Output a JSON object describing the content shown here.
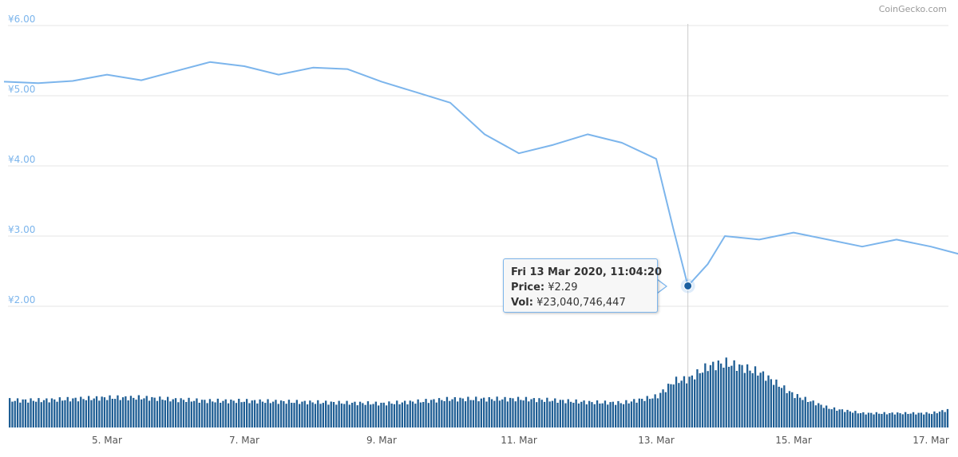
{
  "credit": "CoinGecko.com",
  "colors": {
    "price_line": "#7cb5ec",
    "volume_bar": "#1f5e94",
    "crosshair": "#cccccc",
    "marker": "#1b5fa0"
  },
  "chart_data": [
    {
      "type": "line",
      "series": [
        {
          "x": [
            "2020-03-03 12:00",
            "2020-03-04 00:00",
            "2020-03-04 12:00",
            "2020-03-05 00:00",
            "2020-03-05 12:00",
            "2020-03-06 00:00",
            "2020-03-06 12:00",
            "2020-03-07 00:00",
            "2020-03-07 12:00",
            "2020-03-08 00:00",
            "2020-03-08 12:00",
            "2020-03-09 00:00",
            "2020-03-09 12:00",
            "2020-03-10 00:00",
            "2020-03-10 12:00",
            "2020-03-11 00:00",
            "2020-03-11 12:00",
            "2020-03-12 00:00",
            "2020-03-12 12:00",
            "2020-03-13 00:00",
            "2020-03-13 06:00",
            "2020-03-13 11:04",
            "2020-03-13 18:00",
            "2020-03-14 00:00",
            "2020-03-14 12:00",
            "2020-03-15 00:00",
            "2020-03-15 12:00",
            "2020-03-16 00:00",
            "2020-03-16 12:00",
            "2020-03-17 00:00",
            "2020-03-17 12:00"
          ],
          "values": [
            5.2,
            5.18,
            5.21,
            5.3,
            5.22,
            5.35,
            5.48,
            5.42,
            5.3,
            5.4,
            5.38,
            5.2,
            5.05,
            4.9,
            4.45,
            4.18,
            4.3,
            4.45,
            4.33,
            4.1,
            3.1,
            2.29,
            2.6,
            3.0,
            2.95,
            3.05,
            2.95,
            2.85,
            2.95,
            2.85,
            2.72
          ]
        }
      ],
      "yticks": [
        "¥2.00",
        "¥3.00",
        "¥4.00",
        "¥5.00",
        "¥6.00"
      ],
      "ylim": [
        2.0,
        6.0
      ],
      "grid": true,
      "tooltip": {
        "date": "Fri 13 Mar 2020, 11:04:20",
        "price_label": "Price:",
        "price": "¥2.29",
        "vol_label": "Vol:",
        "volume": "¥23,040,746,447"
      }
    },
    {
      "type": "bar",
      "x": [
        "2020-03-03 12:00",
        "2020-03-04 00:00",
        "2020-03-04 12:00",
        "2020-03-05 00:00",
        "2020-03-05 12:00",
        "2020-03-06 00:00",
        "2020-03-06 12:00",
        "2020-03-07 00:00",
        "2020-03-07 12:00",
        "2020-03-08 00:00",
        "2020-03-08 12:00",
        "2020-03-09 00:00",
        "2020-03-09 12:00",
        "2020-03-10 00:00",
        "2020-03-10 12:00",
        "2020-03-11 00:00",
        "2020-03-11 12:00",
        "2020-03-12 00:00",
        "2020-03-12 12:00",
        "2020-03-13 00:00",
        "2020-03-13 06:00",
        "2020-03-13 11:04",
        "2020-03-13 18:00",
        "2020-03-14 00:00",
        "2020-03-14 06:00",
        "2020-03-14 12:00",
        "2020-03-15 00:00",
        "2020-03-15 12:00",
        "2020-03-16 00:00",
        "2020-03-16 12:00",
        "2020-03-17 00:00",
        "2020-03-17 12:00"
      ],
      "values": [
        0.42,
        0.42,
        0.44,
        0.46,
        0.46,
        0.43,
        0.41,
        0.41,
        0.4,
        0.39,
        0.38,
        0.37,
        0.4,
        0.44,
        0.44,
        0.44,
        0.42,
        0.39,
        0.38,
        0.48,
        0.72,
        0.75,
        0.95,
        1.0,
        0.93,
        0.85,
        0.5,
        0.3,
        0.22,
        0.22,
        0.22,
        0.33
      ],
      "xticks": [
        "5. Mar",
        "7. Mar",
        "9. Mar",
        "11. Mar",
        "13. Mar",
        "15. Mar",
        "17. Mar"
      ]
    }
  ]
}
